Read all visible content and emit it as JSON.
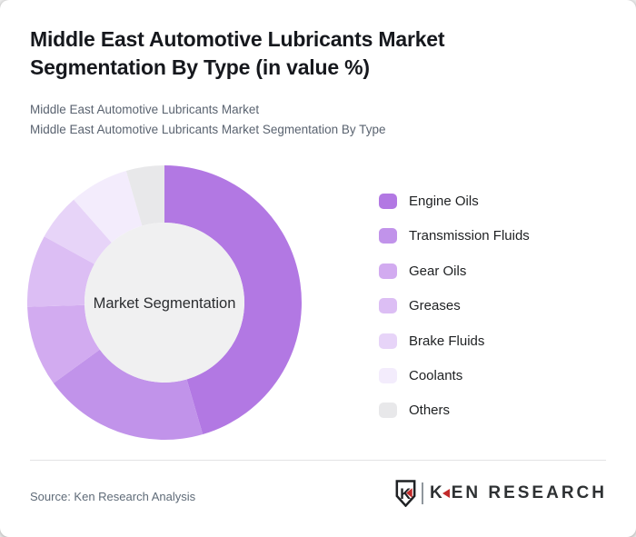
{
  "card": {
    "title": "Middle East Automotive Lubricants Market Segmentation By Type (in value %)",
    "subtitle_line1": "Middle East Automotive Lubricants Market",
    "subtitle_line2": "Middle East Automotive Lubricants Market Segmentation By Type"
  },
  "chart_data": {
    "type": "pie",
    "variant": "donut",
    "title": "Middle East Automotive Lubricants Market Segmentation By Type (in value %)",
    "center_label": "Market Segmentation",
    "categories": [
      "Engine Oils",
      "Transmission Fluids",
      "Gear Oils",
      "Greases",
      "Brake Fluids",
      "Coolants",
      "Others"
    ],
    "values": [
      45.5,
      19.5,
      9.5,
      8.5,
      5.5,
      7.0,
      4.5
    ],
    "unit": "% of value",
    "colors": [
      "#b278e3",
      "#c193ea",
      "#d2abf0",
      "#dcbef4",
      "#e7d4f8",
      "#f3ecfc",
      "#e8e8ea"
    ],
    "center_fill": "#f0f0f1",
    "legend_position": "right",
    "start_angle_deg": 0,
    "direction": "clockwise"
  },
  "footer": {
    "source": "Source: Ken Research Analysis",
    "logo": {
      "emblem_letter": "K",
      "brand_first_letter": "K",
      "brand_rest": "EN RESEARCH",
      "accent_color": "#c22b2b"
    }
  }
}
